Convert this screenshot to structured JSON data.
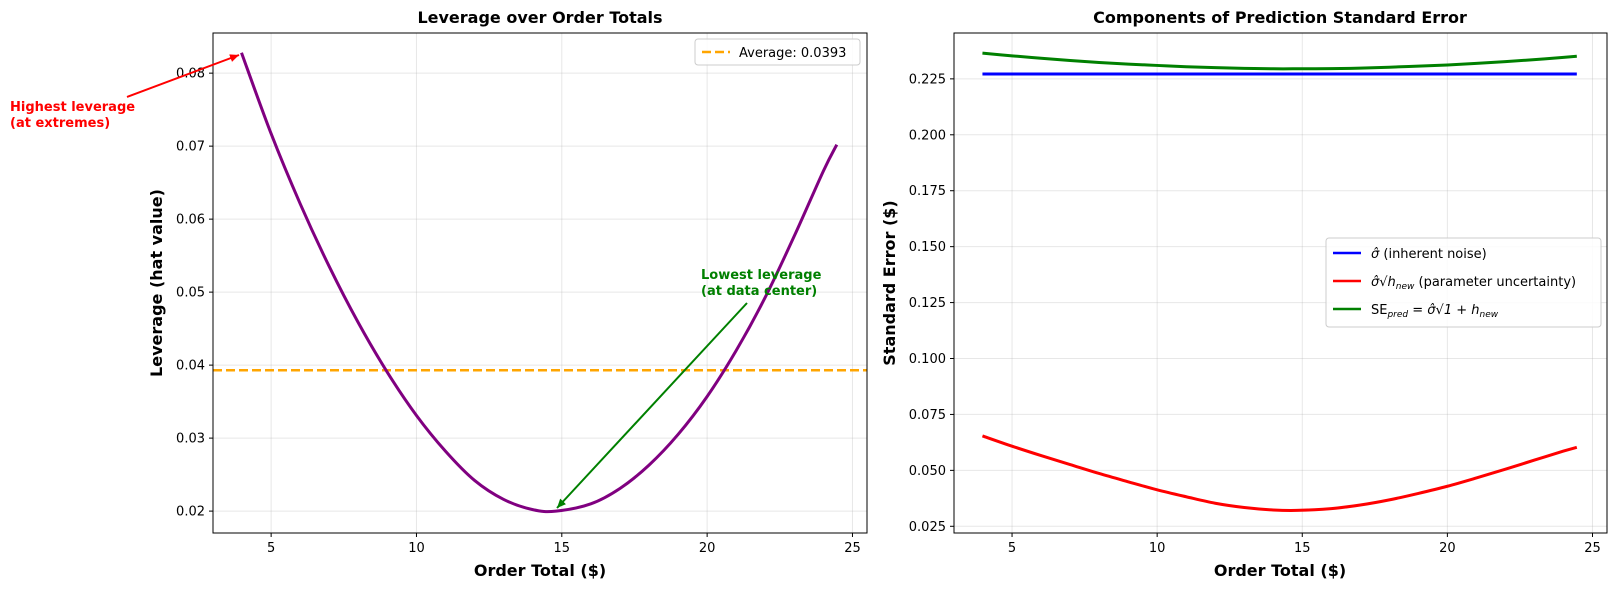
{
  "chart_data": [
    {
      "type": "line",
      "title": "Leverage over Order Totals",
      "xlabel": "Order Total ($)",
      "ylabel": "Leverage (hat value)",
      "xlim": [
        3.0,
        25.5
      ],
      "ylim": [
        0.017,
        0.0855
      ],
      "xticks": [
        5,
        10,
        15,
        20,
        25
      ],
      "yticks": [
        0.02,
        0.03,
        0.04,
        0.05,
        0.06,
        0.07,
        0.08
      ],
      "ytick_labels": [
        "0.02",
        "0.03",
        "0.04",
        "0.05",
        "0.06",
        "0.07",
        "0.08"
      ],
      "grid": true,
      "legend_position": "top-right",
      "series": [
        {
          "name": "Leverage",
          "color": "#800080",
          "x": [
            3.98,
            5,
            6,
            7,
            8,
            9,
            10,
            11,
            12,
            13,
            14,
            14.8,
            16,
            17,
            18,
            19,
            20,
            21,
            22,
            23,
            24,
            24.46
          ],
          "values": [
            0.0828,
            0.0717,
            0.0621,
            0.0535,
            0.0458,
            0.039,
            0.0331,
            0.0282,
            0.0242,
            0.0216,
            0.0202,
            0.02,
            0.021,
            0.0231,
            0.0263,
            0.0305,
            0.0357,
            0.042,
            0.0493,
            0.0577,
            0.0666,
            0.0702
          ]
        }
      ],
      "reference_line": {
        "label": "Average: 0.0393",
        "value": 0.0393,
        "color": "#FFA500"
      },
      "annotations": [
        {
          "id": "high",
          "lines": [
            "Highest leverage",
            "(at extremes)"
          ],
          "color": "#FF0000",
          "target": [
            3.98,
            0.0828
          ]
        },
        {
          "id": "low",
          "lines": [
            "Lowest leverage",
            "(at data center)"
          ],
          "color": "#008000",
          "target": [
            14.8,
            0.02
          ]
        }
      ]
    },
    {
      "type": "line",
      "title": "Components of Prediction Standard Error",
      "xlabel": "Order Total ($)",
      "ylabel": "Standard Error ($)",
      "xlim": [
        3.0,
        25.5
      ],
      "ylim": [
        0.022,
        0.2455
      ],
      "xticks": [
        5,
        10,
        15,
        20,
        25
      ],
      "yticks": [
        0.025,
        0.05,
        0.075,
        0.1,
        0.125,
        0.15,
        0.175,
        0.2,
        0.225
      ],
      "ytick_labels": [
        "0.025",
        "0.050",
        "0.075",
        "0.100",
        "0.125",
        "0.150",
        "0.175",
        "0.200",
        "0.225"
      ],
      "grid": true,
      "legend_position": "center-right",
      "series": [
        {
          "name": "σ̂ (inherent noise)",
          "color": "#0000FF",
          "x": [
            3.98,
            24.46
          ],
          "values": [
            0.2272,
            0.2272
          ]
        },
        {
          "name": "σ̂√h_new (parameter uncertainty)",
          "color": "#FF0000",
          "x": [
            3.98,
            5,
            6,
            7,
            8,
            9,
            10,
            11,
            12,
            13,
            14,
            14.8,
            16,
            17,
            18,
            19,
            20,
            21,
            22,
            23,
            24,
            24.46
          ],
          "values": [
            0.0654,
            0.0608,
            0.0566,
            0.0526,
            0.0486,
            0.0449,
            0.0413,
            0.0382,
            0.0353,
            0.0334,
            0.0323,
            0.0321,
            0.0329,
            0.0345,
            0.0368,
            0.0397,
            0.0429,
            0.0466,
            0.0505,
            0.0546,
            0.0586,
            0.0603
          ]
        },
        {
          "name": "SE_pred = σ̂√(1 + h_new)",
          "color": "#008000",
          "x": [
            3.98,
            5,
            6,
            7,
            8,
            9,
            10,
            11,
            12,
            13,
            14,
            14.8,
            16,
            17,
            18,
            19,
            20,
            21,
            22,
            23,
            24,
            24.46
          ],
          "values": [
            0.2365,
            0.2353,
            0.2342,
            0.2332,
            0.2323,
            0.2316,
            0.231,
            0.2304,
            0.23,
            0.2297,
            0.2295,
            0.2295,
            0.2296,
            0.2298,
            0.2302,
            0.2307,
            0.2312,
            0.2319,
            0.2327,
            0.2336,
            0.2346,
            0.2351
          ]
        }
      ],
      "legend_entries": [
        {
          "symbol": "σ̂",
          "text": " (inherent noise)"
        },
        {
          "symbol": "σ̂√h",
          "sub": "new",
          "text": " (parameter uncertainty)"
        },
        {
          "symbol": "SE",
          "sub": "pred",
          "text": " = σ̂√1 + h",
          "sub2": "new"
        }
      ]
    }
  ]
}
